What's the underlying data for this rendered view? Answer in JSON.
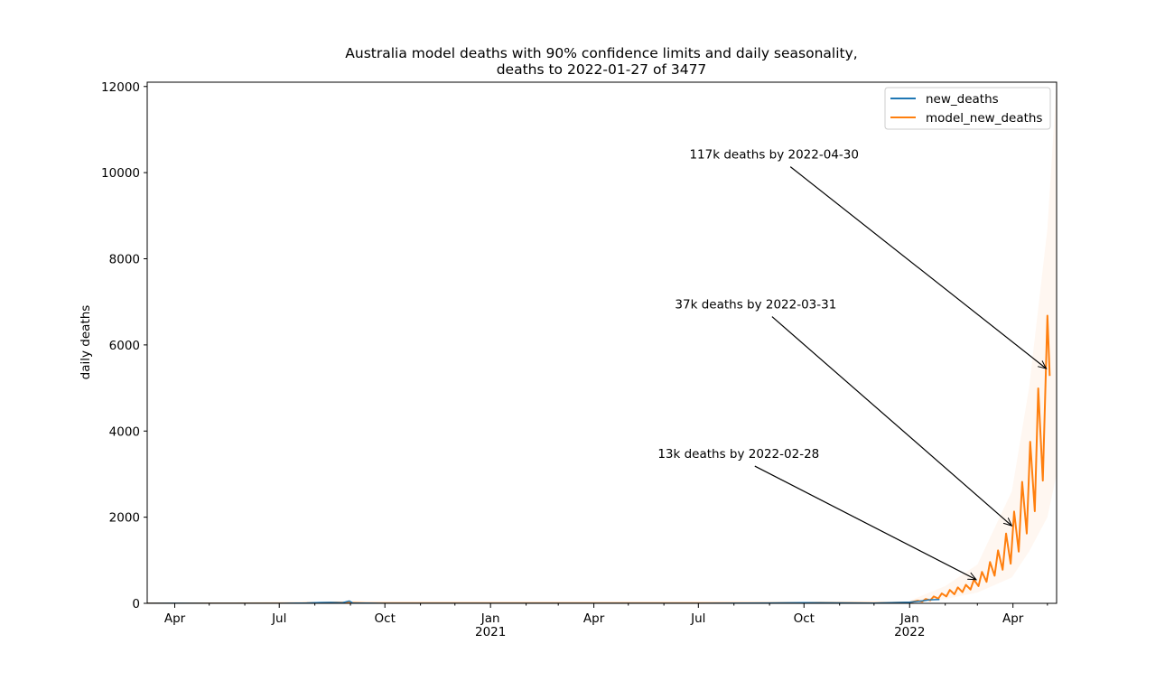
{
  "chart_data": {
    "type": "line",
    "title": "Australia model deaths with 90% confidence limits and daily seasonality,",
    "subtitle": "deaths to 2022-01-27 of 3477",
    "xlabel": "",
    "ylabel": "daily deaths",
    "xlim": [
      "2020-03-08",
      "2022-05-09"
    ],
    "ylim": [
      0,
      12100
    ],
    "yticks": [
      0,
      2000,
      4000,
      6000,
      8000,
      10000,
      12000
    ],
    "xticks": [
      {
        "date": "2020-04-01",
        "label": "Apr",
        "year": ""
      },
      {
        "date": "2020-07-01",
        "label": "Jul",
        "year": ""
      },
      {
        "date": "2020-10-01",
        "label": "Oct",
        "year": ""
      },
      {
        "date": "2021-01-01",
        "label": "Jan",
        "year": "2021"
      },
      {
        "date": "2021-04-01",
        "label": "Apr",
        "year": ""
      },
      {
        "date": "2021-07-01",
        "label": "Jul",
        "year": ""
      },
      {
        "date": "2021-10-01",
        "label": "Oct",
        "year": ""
      },
      {
        "date": "2022-01-01",
        "label": "Jan",
        "year": "2022"
      },
      {
        "date": "2022-04-01",
        "label": "Apr",
        "year": ""
      }
    ],
    "legend": {
      "position": "upper right",
      "entries": [
        "new_deaths",
        "model_new_deaths"
      ]
    },
    "colors": {
      "new_deaths": "#1f77b4",
      "model_new_deaths": "#ff7f0e",
      "ci_band": "#ff7f0e"
    },
    "series": [
      {
        "name": "new_deaths",
        "points": [
          [
            "2020-03-08",
            0
          ],
          [
            "2020-04-01",
            3
          ],
          [
            "2020-05-01",
            1
          ],
          [
            "2020-06-01",
            0
          ],
          [
            "2020-07-01",
            1
          ],
          [
            "2020-07-25",
            8
          ],
          [
            "2020-08-05",
            18
          ],
          [
            "2020-08-15",
            22
          ],
          [
            "2020-08-25",
            14
          ],
          [
            "2020-08-31",
            55
          ],
          [
            "2020-09-03",
            8
          ],
          [
            "2020-09-15",
            4
          ],
          [
            "2020-10-01",
            1
          ],
          [
            "2021-01-01",
            0
          ],
          [
            "2021-07-01",
            0
          ],
          [
            "2021-09-01",
            8
          ],
          [
            "2021-10-01",
            15
          ],
          [
            "2021-11-01",
            10
          ],
          [
            "2021-12-01",
            5
          ],
          [
            "2022-01-01",
            25
          ],
          [
            "2022-01-10",
            50
          ],
          [
            "2022-01-18",
            80
          ],
          [
            "2022-01-27",
            90
          ]
        ]
      },
      {
        "name": "model_new_deaths",
        "weekly_peaks": [
          [
            "2022-01-08",
            60
          ],
          [
            "2022-01-15",
            100
          ],
          [
            "2022-01-22",
            160
          ],
          [
            "2022-01-29",
            230
          ],
          [
            "2022-02-05",
            310
          ],
          [
            "2022-02-12",
            370
          ],
          [
            "2022-02-19",
            430
          ],
          [
            "2022-02-26",
            550
          ],
          [
            "2022-03-05",
            730
          ],
          [
            "2022-03-12",
            960
          ],
          [
            "2022-03-19",
            1230
          ],
          [
            "2022-03-26",
            1620
          ],
          [
            "2022-04-02",
            2130
          ],
          [
            "2022-04-09",
            2820
          ],
          [
            "2022-04-16",
            3750
          ],
          [
            "2022-04-23",
            4990
          ],
          [
            "2022-05-01",
            6680
          ]
        ],
        "weekly_troughs": [
          [
            "2022-01-12",
            40
          ],
          [
            "2022-01-19",
            70
          ],
          [
            "2022-01-26",
            110
          ],
          [
            "2022-02-02",
            160
          ],
          [
            "2022-02-09",
            210
          ],
          [
            "2022-02-16",
            260
          ],
          [
            "2022-02-23",
            320
          ],
          [
            "2022-03-02",
            400
          ],
          [
            "2022-03-09",
            500
          ],
          [
            "2022-03-16",
            640
          ],
          [
            "2022-03-23",
            780
          ],
          [
            "2022-03-30",
            920
          ],
          [
            "2022-04-06",
            1200
          ],
          [
            "2022-04-13",
            1620
          ],
          [
            "2022-04-20",
            2140
          ],
          [
            "2022-04-27",
            2850
          ],
          [
            "2022-05-03",
            5280
          ]
        ],
        "upper_90": [
          [
            "2022-01-01",
            60
          ],
          [
            "2022-02-01",
            400
          ],
          [
            "2022-03-01",
            900
          ],
          [
            "2022-03-31",
            2600
          ],
          [
            "2022-04-15",
            5000
          ],
          [
            "2022-05-01",
            8700
          ],
          [
            "2022-05-09",
            12100
          ]
        ],
        "lower_90": [
          [
            "2022-01-01",
            0
          ],
          [
            "2022-02-01",
            100
          ],
          [
            "2022-03-01",
            250
          ],
          [
            "2022-03-31",
            600
          ],
          [
            "2022-04-15",
            1200
          ],
          [
            "2022-05-01",
            2000
          ],
          [
            "2022-05-09",
            3000
          ]
        ]
      }
    ],
    "annotations": [
      {
        "text": "13k deaths by 2022-02-28",
        "text_at": [
          "2021-08-05",
          3480
        ],
        "arrow_to": [
          "2022-02-28",
          550
        ]
      },
      {
        "text": "37k deaths by 2022-03-31",
        "text_at": [
          "2021-08-20",
          6950
        ],
        "arrow_to": [
          "2022-03-31",
          1800
        ]
      },
      {
        "text": "117k deaths by 2022-04-30",
        "text_at": [
          "2021-09-05",
          10430
        ],
        "arrow_to": [
          "2022-04-30",
          5450
        ]
      }
    ]
  }
}
